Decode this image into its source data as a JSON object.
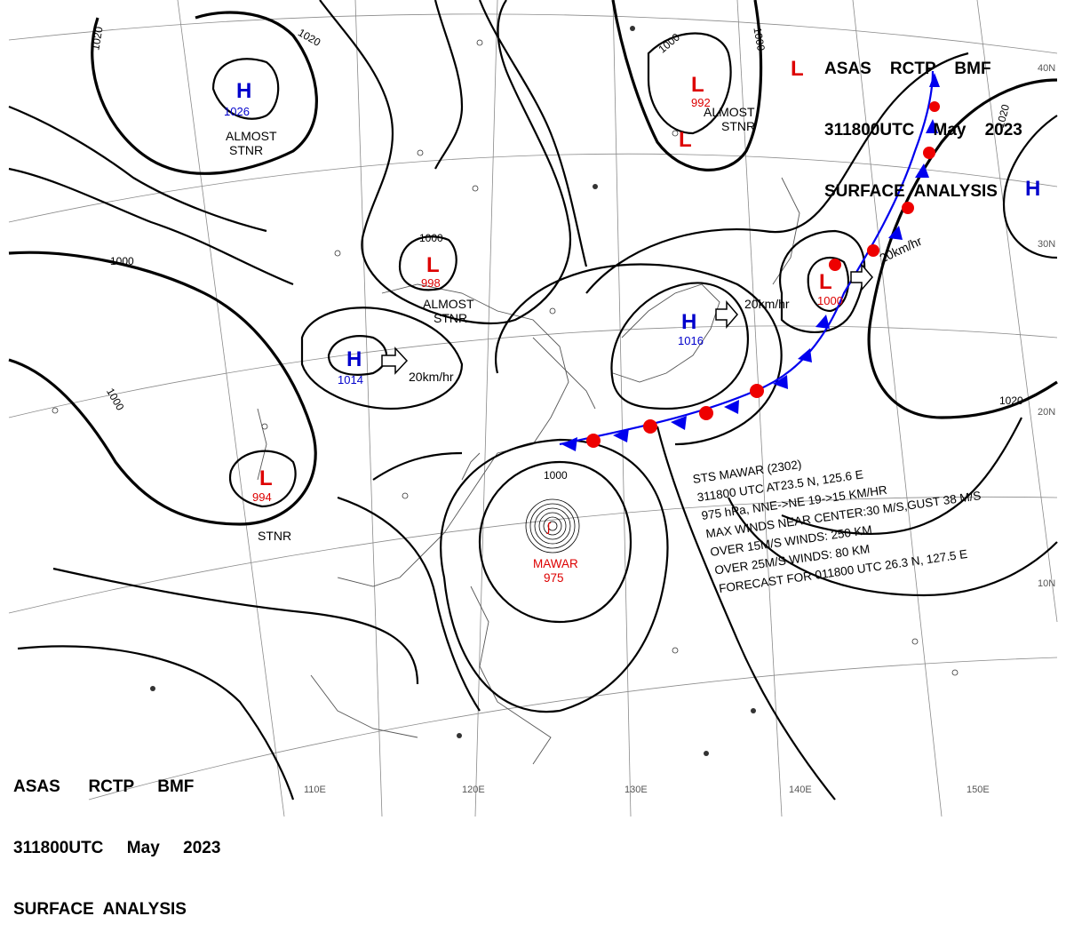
{
  "header_top": {
    "line1": "ASAS    RCTP    BMF",
    "line2": "311800UTC    May    2023",
    "line3": "SURFACE  ANALYSIS"
  },
  "header_bottom": {
    "line1": "ASAS      RCTP     BMF",
    "line2": "311800UTC     May     2023",
    "line3": "SURFACE  ANALYSIS"
  },
  "colors": {
    "high": "#0000cc",
    "low": "#dd0000",
    "isobar": "#000000",
    "front_cold": "#0000ee",
    "front_warm": "#ee0000"
  },
  "highs": [
    {
      "letter": "H",
      "value": "1026"
    },
    {
      "letter": "H",
      "value": "1014"
    },
    {
      "letter": "H",
      "value": "1016"
    },
    {
      "letter": "H",
      "value": ""
    }
  ],
  "lows": [
    {
      "letter": "L",
      "value": "992"
    },
    {
      "letter": "L",
      "value": ""
    },
    {
      "letter": "L",
      "value": ""
    },
    {
      "letter": "L",
      "value": "998"
    },
    {
      "letter": "L",
      "value": "1000"
    },
    {
      "letter": "L",
      "value": "994"
    }
  ],
  "stationary_notes": [
    {
      "line1": "ALMOST",
      "line2": "STNR"
    },
    {
      "line1": "ALMOST",
      "line2": "STNR"
    },
    {
      "line1": "ALMOST",
      "line2": "STNR"
    },
    {
      "line1": "",
      "line2": "STNR"
    }
  ],
  "motions": [
    "20km/hr",
    "20km/hr",
    "20km/hr"
  ],
  "isobar_labels": [
    "1020",
    "1020",
    "1000",
    "1000",
    "1000",
    "1000",
    "1000",
    "1020",
    "1020",
    "1000"
  ],
  "typhoon": {
    "name": "MAWAR",
    "pressure": "975"
  },
  "typhoon_info": [
    "STS  MAWAR  (2302)",
    "311800 UTC  AT23.5 N, 125.6 E",
    "975 hPa, NNE->NE  19->15 KM/HR",
    "MAX WINDS NEAR CENTER:30 M/S,GUST 38 M/S",
    "OVER 15M/S WINDS: 250 KM",
    "OVER 25M/S WINDS: 80 KM",
    "FORECAST FOR 011800 UTC 26.3 N, 127.5 E"
  ],
  "longitudes": [
    "110E",
    "120E",
    "130E",
    "140E",
    "150E"
  ],
  "latitudes": [
    "40N",
    "30N",
    "20N",
    "10N"
  ]
}
